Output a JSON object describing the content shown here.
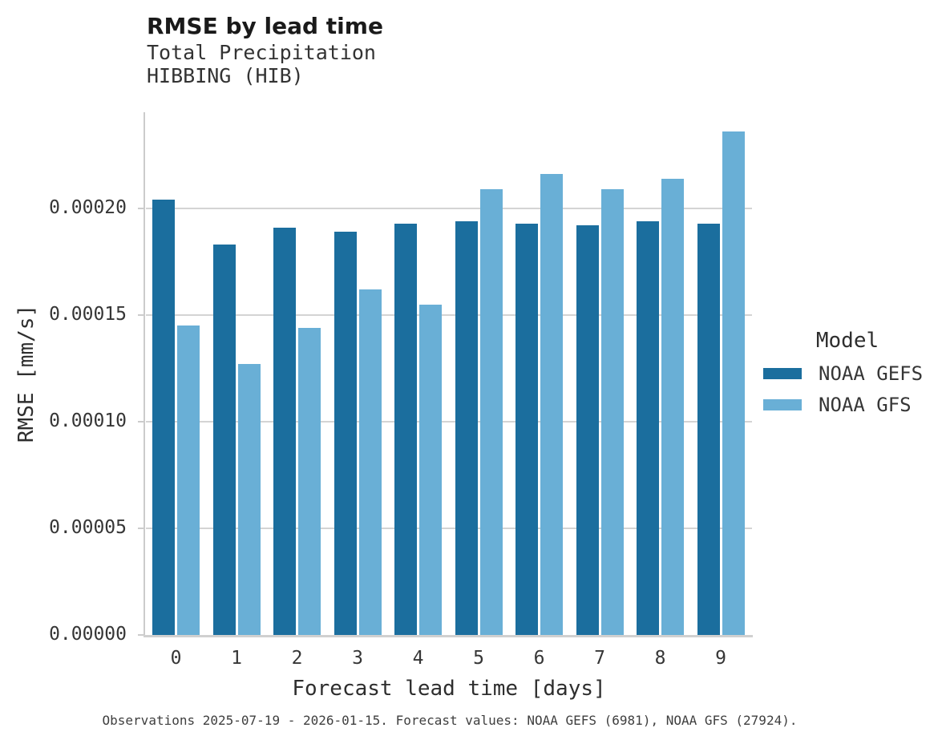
{
  "header": {
    "title": "RMSE by lead time",
    "subtitle_line1": "Total Precipitation",
    "subtitle_line2": "HIBBING (HIB)"
  },
  "legend": {
    "title": "Model",
    "items": [
      {
        "label": "NOAA GEFS",
        "color": "#1B6E9E"
      },
      {
        "label": "NOAA GFS",
        "color": "#69AFD6"
      }
    ]
  },
  "footer": {
    "caption": "Observations 2025-07-19 - 2026-01-15. Forecast values: NOAA GEFS (6981), NOAA GFS (27924)."
  },
  "colors": {
    "gefs_dark_blue": "#1B6E9E",
    "gfs_light_blue": "#69AFD6",
    "gridline_gray": "#d4d4d4",
    "axis_gray": "#cccccc"
  },
  "chart_data": {
    "type": "bar",
    "title": "RMSE by lead time",
    "subtitle_lines": [
      "Total Precipitation",
      "HIBBING (HIB)"
    ],
    "categories": [
      "0",
      "1",
      "2",
      "3",
      "4",
      "5",
      "6",
      "7",
      "8",
      "9"
    ],
    "series": [
      {
        "name": "NOAA GEFS",
        "color": "#1B6E9E",
        "values": [
          0.000204,
          0.000183,
          0.000191,
          0.000189,
          0.000193,
          0.000194,
          0.000193,
          0.000192,
          0.000194,
          0.000193
        ]
      },
      {
        "name": "NOAA GFS",
        "color": "#69AFD6",
        "values": [
          0.000145,
          0.000127,
          0.000144,
          0.000162,
          0.000155,
          0.000209,
          0.000216,
          0.000209,
          0.000214,
          0.000236
        ]
      }
    ],
    "xlabel": "Forecast lead time [days]",
    "ylabel": "RMSE [mm/s]",
    "ylim": [
      0,
      0.000245
    ],
    "yticks": [
      0.0,
      5e-05,
      0.0001,
      0.00015,
      0.0002
    ],
    "ytick_labels": [
      "0.00000",
      "0.00005",
      "0.00010",
      "0.00015",
      "0.00020"
    ],
    "grid": "horizontal",
    "legend_title": "Model",
    "legend_position": "right"
  }
}
